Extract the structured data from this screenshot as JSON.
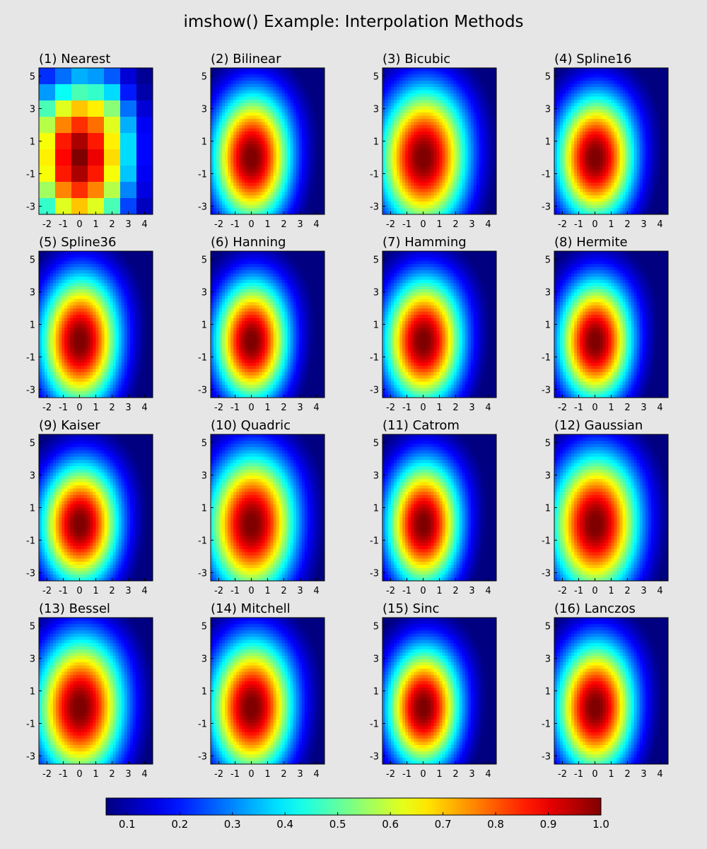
{
  "figure": {
    "title": "imshow() Example: Interpolation Methods"
  },
  "chart_data": {
    "type": "heatmap",
    "colormap": "jet",
    "value_range": [
      0.06,
      1.0
    ],
    "grid": false,
    "legend_placement": "bottom",
    "colorbar": {
      "orientation": "horizontal",
      "ticks": [
        "0.1",
        "0.2",
        "0.3",
        "0.4",
        "0.5",
        "0.6",
        "0.7",
        "0.8",
        "0.9",
        "1.0"
      ]
    },
    "x_extent": [
      -2.5,
      4.5
    ],
    "y_extent": [
      -3.5,
      5.5
    ],
    "x_ticks": [
      "-2",
      "-1",
      "0",
      "1",
      "2",
      "3",
      "4"
    ],
    "y_ticks": [
      "5",
      "3",
      "1",
      "-1",
      "-3"
    ],
    "x_values": [
      -2,
      -1,
      0,
      1,
      2,
      3,
      4
    ],
    "y_values": [
      5,
      4,
      3,
      2,
      1,
      0,
      -1,
      -2,
      -3
    ],
    "z": [
      [
        0.22,
        0.28,
        0.34,
        0.32,
        0.26,
        0.14,
        0.08
      ],
      [
        0.32,
        0.42,
        0.48,
        0.46,
        0.38,
        0.2,
        0.1
      ],
      [
        0.48,
        0.62,
        0.7,
        0.66,
        0.54,
        0.28,
        0.14
      ],
      [
        0.58,
        0.76,
        0.84,
        0.78,
        0.62,
        0.34,
        0.17
      ],
      [
        0.64,
        0.86,
        0.96,
        0.86,
        0.66,
        0.38,
        0.18
      ],
      [
        0.66,
        0.88,
        1.0,
        0.9,
        0.68,
        0.38,
        0.18
      ],
      [
        0.64,
        0.86,
        0.96,
        0.86,
        0.64,
        0.36,
        0.17
      ],
      [
        0.56,
        0.76,
        0.84,
        0.76,
        0.58,
        0.3,
        0.15
      ],
      [
        0.46,
        0.62,
        0.7,
        0.62,
        0.48,
        0.24,
        0.12
      ]
    ],
    "panels": [
      {
        "title": "(1) Nearest",
        "interpolation": "nearest"
      },
      {
        "title": "(2) Bilinear",
        "interpolation": "bilinear"
      },
      {
        "title": "(3) Bicubic",
        "interpolation": "bicubic"
      },
      {
        "title": "(4) Spline16",
        "interpolation": "spline16"
      },
      {
        "title": "(5) Spline36",
        "interpolation": "spline36"
      },
      {
        "title": "(6) Hanning",
        "interpolation": "hanning"
      },
      {
        "title": "(7) Hamming",
        "interpolation": "hamming"
      },
      {
        "title": "(8) Hermite",
        "interpolation": "hermite"
      },
      {
        "title": "(9) Kaiser",
        "interpolation": "kaiser"
      },
      {
        "title": "(10) Quadric",
        "interpolation": "quadric"
      },
      {
        "title": "(11) Catrom",
        "interpolation": "catrom"
      },
      {
        "title": "(12) Gaussian",
        "interpolation": "gaussian"
      },
      {
        "title": "(13) Bessel",
        "interpolation": "bessel"
      },
      {
        "title": "(14) Mitchell",
        "interpolation": "mitchell"
      },
      {
        "title": "(15) Sinc",
        "interpolation": "sinc"
      },
      {
        "title": "(16) Lanczos",
        "interpolation": "lanczos"
      }
    ]
  }
}
